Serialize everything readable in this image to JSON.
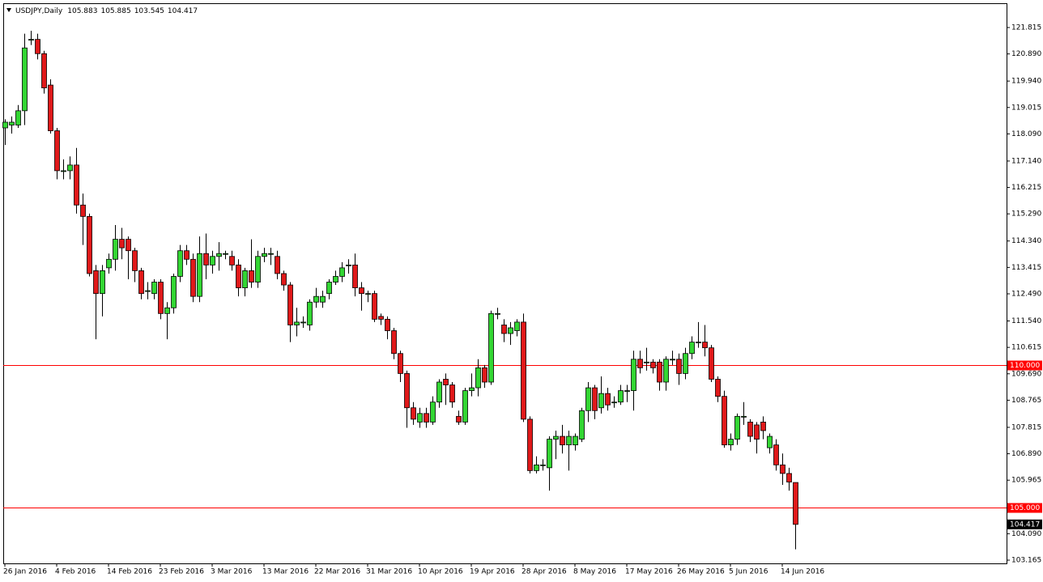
{
  "chart_data": {
    "type": "candlestick",
    "title": "USDJPY,Daily",
    "header_values": [
      105.883,
      105.885,
      103.545,
      104.417
    ],
    "categories": [
      "26 Jan 2016",
      null,
      null,
      null,
      null,
      null,
      null,
      null,
      "4 Feb 2016",
      null,
      null,
      null,
      null,
      null,
      null,
      null,
      "14 Feb 2016",
      null,
      null,
      null,
      null,
      null,
      null,
      null,
      "23 Feb 2016",
      null,
      null,
      null,
      null,
      null,
      null,
      null,
      "3 Mar 2016",
      null,
      null,
      null,
      null,
      null,
      null,
      null,
      "13 Mar 2016",
      null,
      null,
      null,
      null,
      null,
      null,
      null,
      "22 Mar 2016",
      null,
      null,
      null,
      null,
      null,
      null,
      null,
      "31 Mar 2016",
      null,
      null,
      null,
      null,
      null,
      null,
      null,
      "10 Apr 2016",
      null,
      null,
      null,
      null,
      null,
      null,
      null,
      "19 Apr 2016",
      null,
      null,
      null,
      null,
      null,
      null,
      null,
      "28 Apr 2016",
      null,
      null,
      null,
      null,
      null,
      null,
      null,
      "8 May 2016",
      null,
      null,
      null,
      null,
      null,
      null,
      null,
      "17 May 2016",
      null,
      null,
      null,
      null,
      null,
      null,
      null,
      "26 May 2016",
      null,
      null,
      null,
      null,
      null,
      null,
      null,
      "5 Jun 2016",
      null,
      null,
      null,
      null,
      null,
      null,
      null,
      "14 Jun 2016",
      null,
      null
    ],
    "open": [
      118.3,
      118.4,
      118.4,
      118.9,
      121.4,
      121.4,
      120.9,
      119.8,
      118.2,
      116.8,
      116.8,
      117.0,
      115.6,
      115.2,
      113.3,
      112.5,
      113.4,
      113.7,
      114.4,
      114.4,
      114.0,
      113.3,
      112.6,
      112.5,
      112.9,
      111.8,
      112.0,
      113.1,
      114.0,
      113.7,
      112.4,
      113.9,
      113.5,
      113.8,
      113.9,
      113.8,
      113.5,
      112.7,
      113.3,
      112.9,
      113.8,
      113.9,
      113.8,
      113.2,
      112.8,
      111.4,
      111.5,
      111.4,
      112.2,
      112.2,
      112.5,
      112.9,
      113.1,
      113.5,
      113.5,
      112.7,
      112.5,
      112.5,
      111.7,
      111.6,
      111.2,
      110.4,
      109.7,
      108.5,
      108.0,
      108.3,
      108.0,
      108.7,
      109.5,
      109.3,
      108.2,
      108.0,
      109.1,
      109.2,
      109.9,
      109.4,
      111.8,
      111.4,
      111.1,
      111.2,
      111.5,
      108.1,
      106.3,
      106.5,
      106.4,
      107.4,
      107.5,
      107.2,
      107.2,
      107.4,
      108.4,
      109.2,
      108.5,
      109.0,
      108.7,
      108.7,
      109.1,
      109.1,
      110.2,
      110.1,
      110.1,
      110.1,
      109.4,
      110.2,
      110.2,
      109.7,
      110.4,
      110.8,
      110.8,
      110.6,
      109.5,
      108.9,
      107.2,
      107.4,
      108.2,
      108.0,
      107.9,
      108.0,
      107.1,
      107.2,
      106.5,
      106.2,
      105.883
    ],
    "high": [
      118.6,
      118.7,
      119.1,
      121.6,
      121.7,
      121.6,
      121.0,
      120.0,
      118.3,
      117.2,
      117.3,
      117.6,
      116.0,
      115.3,
      113.5,
      113.5,
      113.9,
      114.9,
      114.8,
      114.5,
      114.1,
      113.4,
      112.9,
      113.0,
      113.0,
      112.2,
      113.2,
      114.2,
      114.2,
      113.9,
      114.5,
      114.6,
      114.0,
      114.3,
      114.0,
      114.0,
      113.7,
      113.4,
      114.4,
      114.0,
      114.1,
      114.1,
      114.0,
      113.3,
      112.9,
      112.0,
      111.7,
      112.3,
      112.7,
      112.6,
      113.0,
      113.3,
      113.6,
      113.7,
      113.9,
      112.9,
      112.6,
      112.6,
      111.8,
      111.7,
      111.3,
      110.5,
      109.8,
      108.7,
      108.5,
      108.5,
      108.9,
      109.5,
      109.7,
      109.4,
      108.4,
      109.2,
      109.7,
      110.2,
      110.0,
      111.9,
      112.0,
      111.6,
      111.5,
      111.6,
      111.8,
      108.2,
      106.8,
      106.7,
      107.5,
      107.7,
      107.9,
      107.7,
      107.6,
      108.5,
      109.4,
      109.3,
      109.6,
      109.2,
      108.9,
      109.3,
      109.3,
      110.5,
      110.5,
      110.6,
      110.2,
      110.2,
      110.3,
      110.5,
      110.4,
      110.6,
      111.0,
      111.5,
      111.4,
      110.7,
      109.6,
      109.1,
      107.6,
      108.3,
      108.7,
      108.1,
      108.0,
      108.2,
      107.6,
      107.4,
      106.9,
      106.4,
      105.885
    ],
    "low": [
      117.7,
      118.1,
      118.3,
      118.4,
      121.2,
      120.7,
      119.5,
      118.1,
      116.5,
      116.5,
      116.5,
      115.3,
      114.2,
      113.1,
      110.9,
      111.7,
      113.2,
      113.3,
      113.7,
      113.0,
      112.9,
      112.3,
      112.3,
      112.3,
      111.6,
      110.9,
      111.8,
      112.9,
      113.5,
      112.2,
      112.2,
      113.0,
      113.2,
      113.3,
      113.7,
      113.3,
      112.4,
      112.4,
      112.7,
      112.7,
      113.6,
      113.5,
      113.0,
      112.6,
      110.8,
      111.0,
      111.3,
      111.2,
      112.0,
      112.0,
      112.3,
      112.8,
      112.9,
      113.2,
      112.4,
      111.9,
      112.2,
      111.5,
      111.4,
      110.9,
      110.2,
      109.4,
      107.8,
      107.9,
      107.8,
      107.8,
      107.9,
      108.5,
      108.6,
      108.5,
      107.9,
      107.9,
      108.9,
      108.9,
      109.2,
      109.3,
      111.6,
      110.8,
      110.7,
      111.0,
      108.0,
      106.2,
      106.2,
      106.3,
      105.6,
      106.7,
      106.9,
      106.3,
      107.0,
      107.3,
      108.0,
      108.1,
      108.3,
      108.4,
      108.5,
      108.6,
      108.7,
      108.4,
      109.7,
      109.8,
      109.7,
      109.1,
      109.1,
      110.0,
      109.3,
      109.5,
      110.2,
      110.6,
      110.3,
      109.4,
      108.7,
      107.1,
      107.0,
      107.2,
      107.9,
      107.3,
      106.9,
      107.4,
      106.9,
      106.3,
      105.8,
      105.6,
      103.545
    ],
    "close": [
      118.5,
      118.5,
      118.9,
      121.1,
      121.4,
      120.9,
      119.7,
      118.2,
      116.8,
      116.8,
      117.0,
      115.6,
      115.2,
      113.2,
      112.5,
      113.3,
      113.7,
      114.4,
      114.1,
      114.0,
      113.3,
      112.5,
      112.6,
      112.9,
      111.8,
      112.0,
      113.1,
      114.0,
      113.7,
      112.4,
      113.9,
      113.5,
      113.8,
      113.9,
      113.9,
      113.5,
      112.7,
      113.3,
      112.9,
      113.8,
      113.9,
      113.9,
      113.2,
      112.8,
      111.4,
      111.5,
      111.5,
      112.2,
      112.4,
      112.4,
      112.9,
      113.1,
      113.4,
      113.5,
      112.7,
      112.5,
      112.5,
      111.6,
      111.6,
      111.2,
      110.4,
      109.7,
      108.5,
      108.1,
      108.3,
      108.0,
      108.7,
      109.4,
      109.3,
      108.7,
      108.0,
      109.1,
      109.2,
      109.9,
      109.4,
      111.8,
      111.8,
      111.1,
      111.3,
      111.5,
      108.1,
      106.3,
      106.5,
      106.5,
      107.4,
      107.5,
      107.2,
      107.5,
      107.5,
      108.4,
      109.2,
      108.4,
      109.0,
      108.6,
      108.7,
      109.1,
      109.1,
      110.2,
      109.9,
      110.1,
      109.9,
      109.4,
      110.2,
      110.2,
      109.7,
      110.4,
      110.8,
      110.8,
      110.6,
      109.5,
      108.9,
      107.2,
      107.4,
      108.2,
      108.2,
      107.5,
      107.4,
      107.7,
      107.5,
      106.5,
      106.2,
      105.9,
      104.417
    ],
    "up_color": "#33d633",
    "down_color": "#e0191a",
    "ylim": [
      103.023,
      122.665
    ],
    "yticks": [
      121.815,
      {
        "value": 120.89,
        "label": "120.890"
      },
      {
        "value": 119.94,
        "label": "119.940"
      },
      119.015,
      {
        "value": 118.09,
        "label": "118.090"
      },
      {
        "value": 117.14,
        "label": "117.140"
      },
      116.215,
      {
        "value": 115.29,
        "label": "115.290"
      },
      {
        "value": 114.34,
        "label": "114.340"
      },
      113.415,
      {
        "value": 112.49,
        "label": "112.490"
      },
      {
        "value": 111.54,
        "label": "111.540"
      },
      110.615,
      {
        "value": 109.69,
        "label": "109.690"
      },
      108.765,
      107.815,
      {
        "value": 106.89,
        "label": "106.890"
      },
      105.965,
      {
        "value": 104.09,
        "label": "104.090"
      },
      103.165
    ],
    "hlines": [
      {
        "value": 110,
        "label": "110.000"
      },
      {
        "value": 105,
        "label": "105.000"
      }
    ],
    "hline_color": "#ff0000",
    "current_price": 104.417
  }
}
